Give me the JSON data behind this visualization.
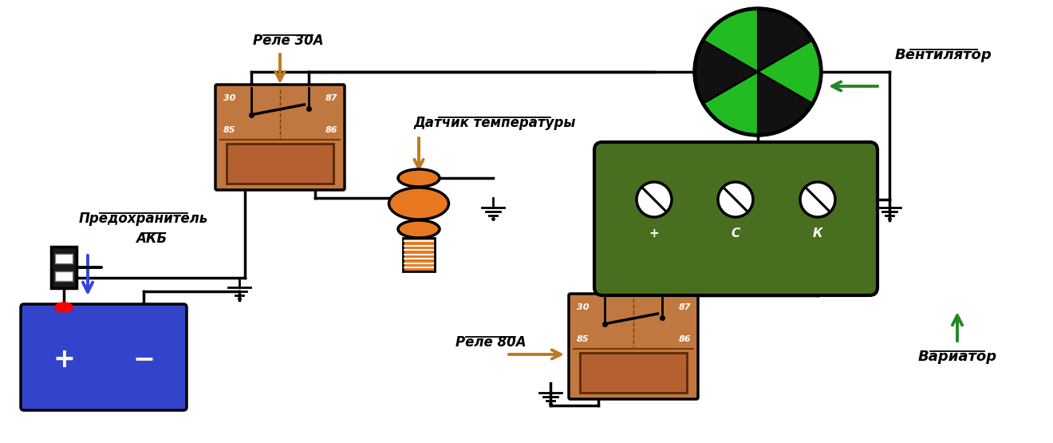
{
  "bg_color": "#ffffff",
  "relay_fill": "#c07840",
  "relay_coil_fill": "#b06030",
  "relay_stroke": "#000000",
  "battery_fill": "#3344cc",
  "fan_black": "#111111",
  "fan_green": "#22bb22",
  "sensor_fill": "#e87820",
  "motor_fill": "#4a6e20",
  "arrow_brown": "#c07820",
  "arrow_blue": "#3344dd",
  "arrow_green": "#228822",
  "wire_color": "#000000",
  "relay30A_label": "Реле 30А",
  "relay80A_label": "Реле 80А",
  "sensor_label": "Датчик температуры",
  "fuse_label": "Предохранитель",
  "akb_label": "АКБ",
  "fan_label": "Вентилятор",
  "variator_label": "Вариатор"
}
